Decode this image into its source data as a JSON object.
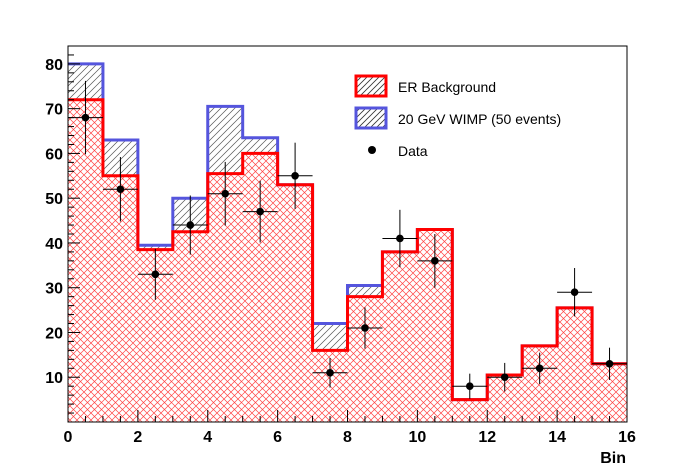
{
  "chart_data": {
    "type": "histogram",
    "xlabel": "Bin",
    "ylabel": "",
    "xlim": [
      0,
      16
    ],
    "ylim": [
      0,
      84
    ],
    "x_ticks": [
      0,
      2,
      4,
      6,
      8,
      10,
      12,
      14,
      16
    ],
    "y_ticks": [
      10,
      20,
      30,
      40,
      50,
      60,
      70,
      80
    ],
    "bin_edges": [
      0,
      1,
      2,
      3,
      4,
      5,
      6,
      7,
      8,
      9,
      10,
      11,
      12,
      13,
      14,
      15,
      16
    ],
    "series": [
      {
        "name": "ER Background",
        "kind": "histogram",
        "color": "#ff0000",
        "values": [
          72,
          55,
          38.5,
          42.5,
          55.5,
          60,
          53,
          16,
          28,
          38,
          43,
          5,
          10.5,
          17,
          25.5,
          13
        ]
      },
      {
        "name": "20 GeV WIMP (50 events)",
        "kind": "stacked-histogram",
        "color": "#5555dd",
        "values": [
          80,
          63,
          39.5,
          50,
          70.5,
          63.5,
          53,
          22,
          30.5,
          38,
          43,
          5,
          10.5,
          17,
          25.5,
          13
        ]
      },
      {
        "name": "Data",
        "kind": "points",
        "color": "#000000",
        "x": [
          0.5,
          1.5,
          2.5,
          3.5,
          4.5,
          5.5,
          6.5,
          7.5,
          8.5,
          9.5,
          10.5,
          11.5,
          12.5,
          13.5,
          14.5,
          15.5
        ],
        "values": [
          68,
          52,
          33,
          44,
          51,
          47,
          55,
          11,
          21,
          41,
          36,
          8,
          10,
          12,
          29,
          13
        ],
        "errors": [
          8.2,
          7.2,
          5.7,
          6.6,
          7.1,
          6.9,
          7.4,
          3.3,
          4.6,
          6.4,
          6.0,
          2.8,
          3.2,
          3.5,
          5.4,
          3.6
        ]
      }
    ],
    "legend": {
      "position": "top-right",
      "entries": [
        "ER Background",
        "20 GeV WIMP (50 events)",
        "Data"
      ]
    },
    "grid": false
  }
}
